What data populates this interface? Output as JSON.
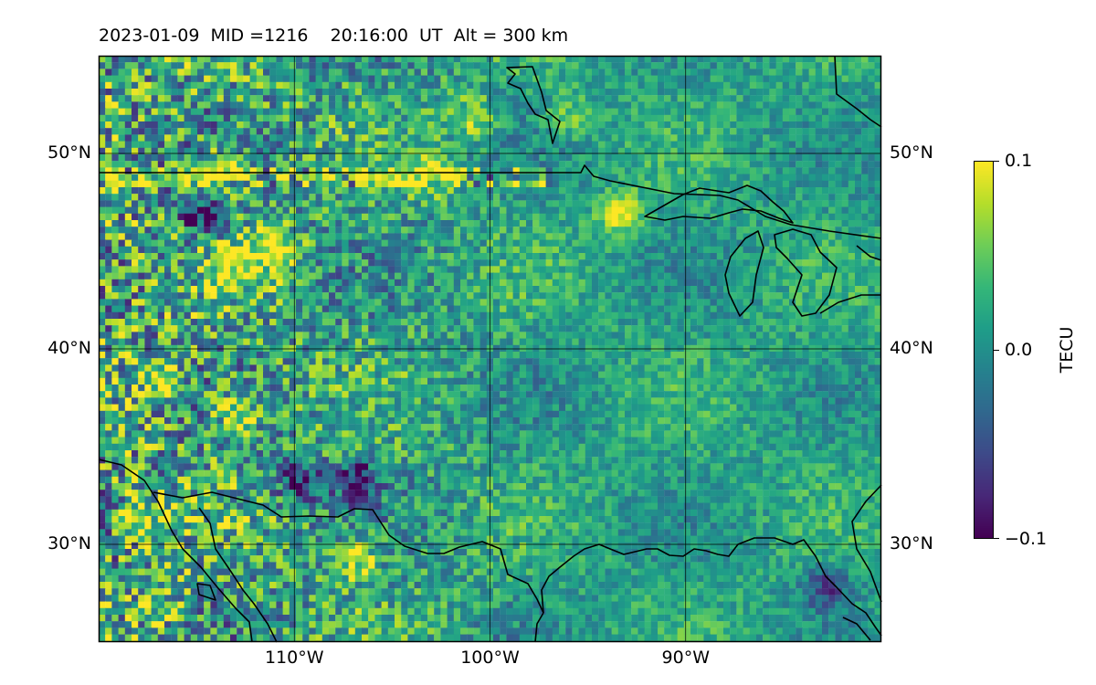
{
  "title": "2023-01-09  MID =1216    20:16:00  UT  Alt = 300 km",
  "colormap": "viridis",
  "colors": {
    "coastline": "#000000",
    "gridline": "#000000",
    "frame": "#000000"
  },
  "map": {
    "projection": "plate-carree",
    "lon_range": [
      -120,
      -80
    ],
    "lat_range": [
      25,
      55
    ],
    "grid": true,
    "lat_ticks": [
      {
        "value": 50,
        "label": "50°N"
      },
      {
        "value": 40,
        "label": "40°N"
      },
      {
        "value": 30,
        "label": "30°N"
      }
    ],
    "lon_ticks": [
      {
        "value": -110,
        "label": "110°W"
      },
      {
        "value": -100,
        "label": "100°W"
      },
      {
        "value": -90,
        "label": "90°W"
      }
    ]
  },
  "colorbar": {
    "label": "TECU",
    "min": -0.1,
    "max": 0.1,
    "ticks": [
      {
        "value": 0.1,
        "label": "0.1"
      },
      {
        "value": 0.0,
        "label": "0.0"
      },
      {
        "value": -0.1,
        "label": "−0.1"
      }
    ]
  },
  "chart_data": {
    "type": "heatmap",
    "title": "2023-01-09  MID =1216    20:16:00  UT  Alt = 300 km",
    "quantity": "TECU",
    "value_range": [
      -0.1,
      0.1
    ],
    "x_range_lon": [
      -120,
      -80
    ],
    "y_range_lat": [
      25,
      55
    ],
    "features": [
      {
        "lon": -113,
        "lat": 44.5,
        "value": 0.1
      },
      {
        "lon": -111,
        "lat": 45,
        "value": 0.1
      },
      {
        "lon": -115,
        "lat": 47,
        "value": -0.1
      },
      {
        "lon": -110,
        "lat": 33.5,
        "value": -0.1
      },
      {
        "lon": -107,
        "lat": 33.5,
        "value": -0.1
      },
      {
        "lon": -113,
        "lat": 37,
        "value": 0.1
      },
      {
        "lon": -117,
        "lat": 38.5,
        "value": 0.1
      },
      {
        "lon": -118,
        "lat": 31.5,
        "value": 0.1
      },
      {
        "lon": -107,
        "lat": 29.5,
        "value": 0.1
      },
      {
        "lon": -101,
        "lat": 52,
        "value": 0.08
      },
      {
        "lon": -96,
        "lat": 52,
        "value": 0.06
      },
      {
        "lon": -114,
        "lat": 49,
        "value": 0.1
      },
      {
        "lon": -103,
        "lat": 49,
        "value": 0.1
      },
      {
        "lon": -93.5,
        "lat": 47,
        "value": 0.1
      },
      {
        "lon": -117,
        "lat": 27,
        "value": 0.06
      },
      {
        "lon": -83,
        "lat": 28,
        "value": -0.08
      }
    ]
  }
}
